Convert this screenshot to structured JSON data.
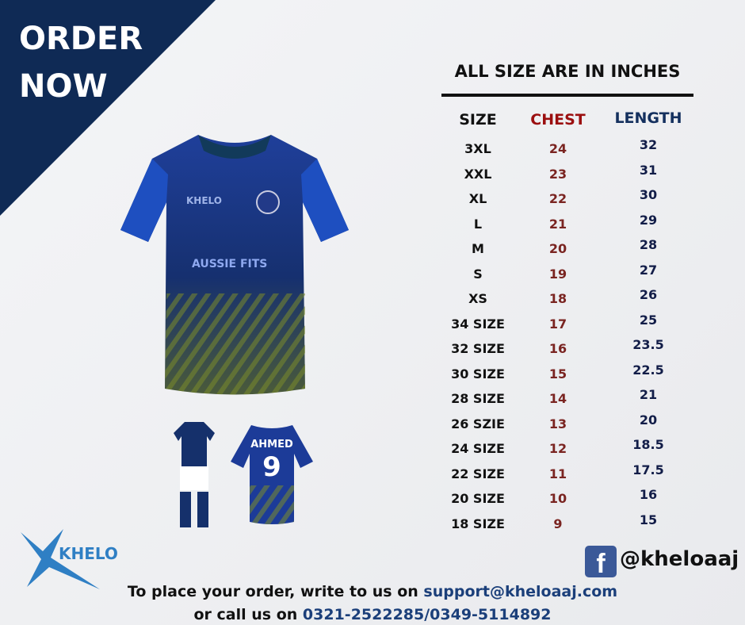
{
  "banner": {
    "line1": "ORDER",
    "line2": "NOW"
  },
  "size_chart": {
    "title": "ALL SIZE ARE IN INCHES",
    "headers": [
      "SIZE",
      "CHEST",
      "LENGTH"
    ],
    "rows": [
      [
        "3XL",
        "24",
        "32"
      ],
      [
        "XXL",
        "23",
        "31"
      ],
      [
        "XL",
        "22",
        "30"
      ],
      [
        "L",
        "21",
        "29"
      ],
      [
        "M",
        "20",
        "28"
      ],
      [
        "S",
        "19",
        "27"
      ],
      [
        "XS",
        "18",
        "26"
      ],
      [
        "34 SIZE",
        "17",
        "25"
      ],
      [
        "32 SIZE",
        "16",
        "23.5"
      ],
      [
        "30 SIZE",
        "15",
        "22.5"
      ],
      [
        "28 SIZE",
        "14",
        "21"
      ],
      [
        "26 SZIE",
        "13",
        "20"
      ],
      [
        "24 SIZE",
        "12",
        "18.5"
      ],
      [
        "22 SIZE",
        "11",
        "17.5"
      ],
      [
        "20 SIZE",
        "10",
        "16"
      ],
      [
        "18 SIZE",
        "9",
        "15"
      ]
    ]
  },
  "product": {
    "jersey_logo": "KHELO",
    "sponsor": "AUSSIE FITS",
    "player_name": "AHMED",
    "player_number": "9"
  },
  "brand": {
    "logo_text": "KHELO",
    "color": "#2f7fc4"
  },
  "social": {
    "icon": "facebook-icon",
    "handle": "@kheloaaj"
  },
  "contact": {
    "line1_prefix": "To place your order, write to us on ",
    "email": "support@kheloaaj.com",
    "line2_prefix": "or call us on ",
    "phone": "0321-2522285/0349-5114892"
  },
  "colors": {
    "navy": "#0f2a55",
    "chest": "#7a2421",
    "length": "#121d48",
    "link": "#1b3f7a"
  }
}
